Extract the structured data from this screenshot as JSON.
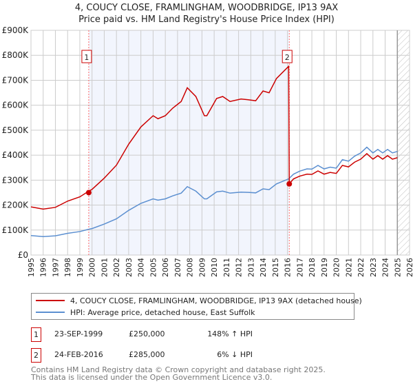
{
  "chart_data": {
    "type": "line",
    "title": "4, COUCY CLOSE, FRAMLINGHAM, WOODBRIDGE, IP13 9AX",
    "subtitle": "Price paid vs. HM Land Registry's House Price Index (HPI)",
    "xlabel": "",
    "ylabel": "",
    "xlim": [
      1995,
      2026
    ],
    "ylim": [
      0,
      900000
    ],
    "x_ticks": [
      "1995",
      "1996",
      "1997",
      "1998",
      "1999",
      "2000",
      "2001",
      "2002",
      "2003",
      "2004",
      "2005",
      "2006",
      "2007",
      "2008",
      "2009",
      "2010",
      "2011",
      "2012",
      "2013",
      "2014",
      "2015",
      "2016",
      "2017",
      "2018",
      "2019",
      "2020",
      "2021",
      "2022",
      "2023",
      "2024",
      "2025",
      "2026"
    ],
    "y_ticks": [
      {
        "value": 0,
        "label": "£0"
      },
      {
        "value": 100000,
        "label": "£100K"
      },
      {
        "value": 200000,
        "label": "£200K"
      },
      {
        "value": 300000,
        "label": "£300K"
      },
      {
        "value": 400000,
        "label": "£400K"
      },
      {
        "value": 500000,
        "label": "£500K"
      },
      {
        "value": 600000,
        "label": "£600K"
      },
      {
        "value": 700000,
        "label": "£700K"
      },
      {
        "value": 800000,
        "label": "£800K"
      },
      {
        "value": 900000,
        "label": "£900K"
      }
    ],
    "grid": true,
    "shaded_period": [
      1999.73,
      2016.15
    ],
    "forecast_hatch_from": 2025.0,
    "series": [
      {
        "name": "4, COUCY CLOSE, FRAMLINGHAM, WOODBRIDGE, IP13 9AX (detached house)",
        "color": "#cc0000",
        "points": [
          [
            1995,
            193000
          ],
          [
            1996,
            184000
          ],
          [
            1997,
            191000
          ],
          [
            1998,
            216000
          ],
          [
            1999,
            233000
          ],
          [
            1999.7,
            255000
          ],
          [
            2000,
            263000
          ],
          [
            2001,
            308000
          ],
          [
            2002,
            360000
          ],
          [
            2003,
            444000
          ],
          [
            2004,
            513000
          ],
          [
            2005,
            558000
          ],
          [
            2005.4,
            546000
          ],
          [
            2006,
            558000
          ],
          [
            2006.6,
            588000
          ],
          [
            2007.3,
            615000
          ],
          [
            2007.8,
            670000
          ],
          [
            2008.5,
            635000
          ],
          [
            2009.2,
            558000
          ],
          [
            2009.4,
            558000
          ],
          [
            2010.2,
            627000
          ],
          [
            2010.7,
            635000
          ],
          [
            2011.3,
            615000
          ],
          [
            2012.2,
            625000
          ],
          [
            2012.8,
            622000
          ],
          [
            2013.4,
            618000
          ],
          [
            2014,
            657000
          ],
          [
            2014.5,
            650000
          ],
          [
            2015.1,
            707000
          ],
          [
            2016.1,
            756000
          ],
          [
            2016.15,
            285000
          ],
          [
            2016.5,
            305000
          ],
          [
            2017,
            316000
          ],
          [
            2017.6,
            324000
          ],
          [
            2018,
            323000
          ],
          [
            2018.5,
            337000
          ],
          [
            2019,
            324000
          ],
          [
            2019.5,
            331000
          ],
          [
            2020,
            327000
          ],
          [
            2020.5,
            359000
          ],
          [
            2021,
            353000
          ],
          [
            2021.5,
            372000
          ],
          [
            2022,
            384000
          ],
          [
            2022.5,
            406000
          ],
          [
            2023,
            384000
          ],
          [
            2023.4,
            398000
          ],
          [
            2023.8,
            384000
          ],
          [
            2024.2,
            398000
          ],
          [
            2024.6,
            384000
          ],
          [
            2025,
            390000
          ]
        ]
      },
      {
        "name": "HPI: Average price, detached house, East Suffolk",
        "color": "#5b8fd0",
        "points": [
          [
            1995,
            78000
          ],
          [
            1996,
            74000
          ],
          [
            1997,
            77000
          ],
          [
            1998,
            87000
          ],
          [
            1999,
            94000
          ],
          [
            1999.7,
            103000
          ],
          [
            2000,
            106000
          ],
          [
            2001,
            124000
          ],
          [
            2002,
            145000
          ],
          [
            2003,
            179000
          ],
          [
            2004,
            207000
          ],
          [
            2005,
            225000
          ],
          [
            2005.4,
            220000
          ],
          [
            2006,
            225000
          ],
          [
            2006.6,
            237000
          ],
          [
            2007.3,
            248000
          ],
          [
            2007.8,
            274000
          ],
          [
            2008.5,
            256000
          ],
          [
            2009.2,
            225000
          ],
          [
            2009.4,
            225000
          ],
          [
            2010.2,
            253000
          ],
          [
            2010.7,
            256000
          ],
          [
            2011.3,
            248000
          ],
          [
            2012.2,
            252000
          ],
          [
            2012.8,
            251000
          ],
          [
            2013.4,
            249000
          ],
          [
            2014,
            265000
          ],
          [
            2014.5,
            262000
          ],
          [
            2015.1,
            285000
          ],
          [
            2016.1,
            305000
          ],
          [
            2016.5,
            324000
          ],
          [
            2017,
            336000
          ],
          [
            2017.6,
            345000
          ],
          [
            2018,
            344000
          ],
          [
            2018.5,
            359000
          ],
          [
            2019,
            345000
          ],
          [
            2019.5,
            352000
          ],
          [
            2020,
            348000
          ],
          [
            2020.5,
            382000
          ],
          [
            2021,
            376000
          ],
          [
            2021.5,
            396000
          ],
          [
            2022,
            409000
          ],
          [
            2022.5,
            432000
          ],
          [
            2023,
            409000
          ],
          [
            2023.4,
            423000
          ],
          [
            2023.8,
            409000
          ],
          [
            2024.2,
            423000
          ],
          [
            2024.6,
            409000
          ],
          [
            2025,
            415000
          ]
        ]
      }
    ],
    "sales": [
      {
        "marker": "1",
        "x": 1999.73,
        "value": 250000,
        "date": "23-SEP-1999",
        "price": "£250,000",
        "hpi_change": "148% ↑ HPI"
      },
      {
        "marker": "2",
        "x": 2016.15,
        "value": 285000,
        "date": "24-FEB-2016",
        "price": "£285,000",
        "hpi_change": "6% ↓ HPI"
      }
    ]
  },
  "footer": {
    "line1": "Contains HM Land Registry data © Crown copyright and database right 2025.",
    "line2": "This data is licensed under the Open Government Licence v3.0."
  }
}
